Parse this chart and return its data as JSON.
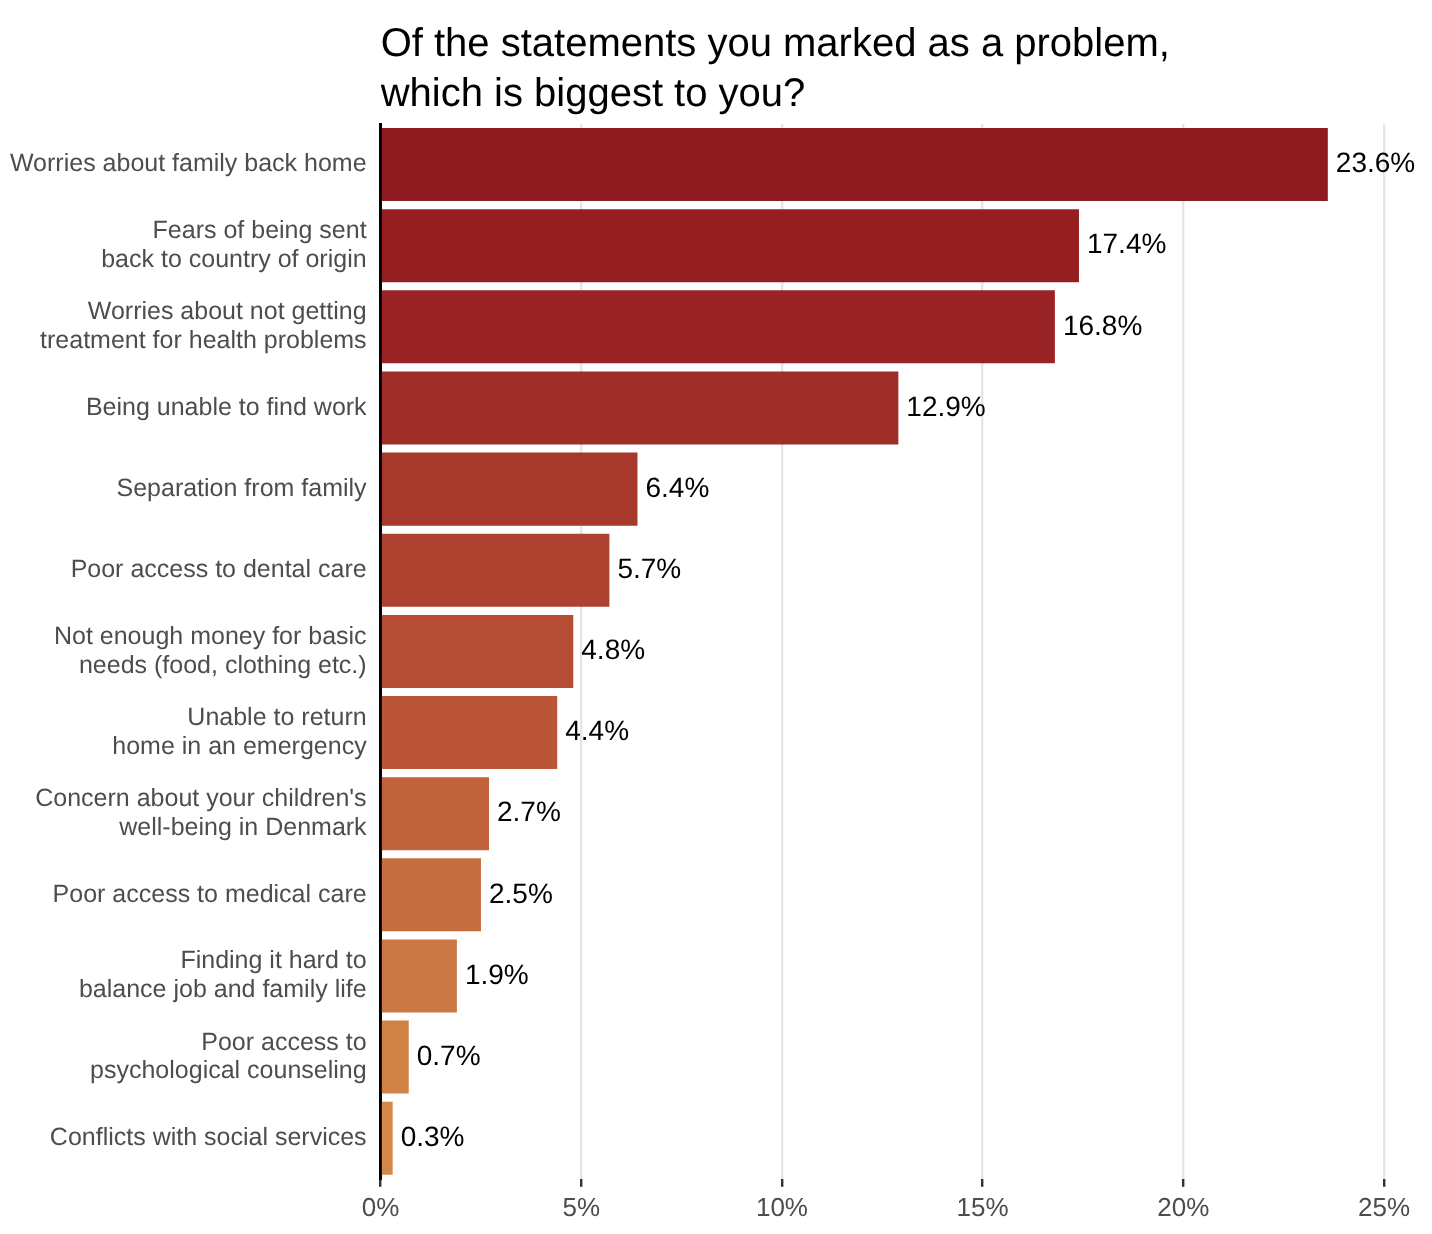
{
  "chart_data": {
    "type": "bar",
    "orientation": "horizontal",
    "title": "Of the statements you marked as a problem,\nwhich is biggest to you?",
    "categories": [
      "Worries about family back home",
      "Fears of being sent\nback to country of origin",
      "Worries about not getting\ntreatment for health problems",
      "Being unable to find work",
      "Separation from family",
      "Poor access to dental care",
      "Not enough money for basic\nneeds (food, clothing etc.)",
      "Unable to return\nhome in an emergency",
      "Concern about your children's\nwell-being in Denmark",
      "Poor access to medical care",
      "Finding it hard to\nbalance job and family life",
      "Poor access to\npsychological counseling",
      "Conflicts with social services"
    ],
    "values": [
      23.6,
      17.4,
      16.8,
      12.9,
      6.4,
      5.7,
      4.8,
      4.4,
      2.7,
      2.5,
      1.9,
      0.7,
      0.3
    ],
    "value_labels": [
      "23.6%",
      "17.4%",
      "16.8%",
      "12.9%",
      "6.4%",
      "5.7%",
      "4.8%",
      "4.4%",
      "2.7%",
      "2.5%",
      "1.9%",
      "0.7%",
      "0.3%"
    ],
    "colors": [
      "#8e1b1f",
      "#951e21",
      "#992224",
      "#9f2d28",
      "#a6392c",
      "#ad4230",
      "#b44d34",
      "#ba5637",
      "#c0623c",
      "#c66d40",
      "#cc7844",
      "#d08146",
      "#d4884a"
    ],
    "xlim": [
      0,
      25
    ],
    "xticks": [
      {
        "value": 0,
        "label": "0%"
      },
      {
        "value": 5,
        "label": "5%"
      },
      {
        "value": 10,
        "label": "10%"
      },
      {
        "value": 15,
        "label": "15%"
      },
      {
        "value": 20,
        "label": "20%"
      },
      {
        "value": 25,
        "label": "25%"
      }
    ],
    "grid": "x",
    "legend": false
  }
}
